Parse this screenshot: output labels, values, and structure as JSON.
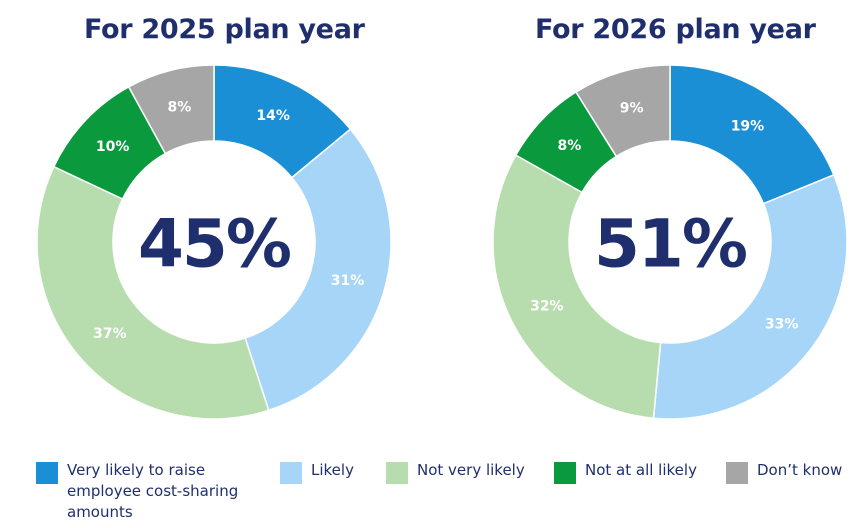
{
  "legend": [
    {
      "label": "Very likely to raise employee cost-sharing amounts",
      "color": "#1b8fd6"
    },
    {
      "label": "Likely",
      "color": "#a6d5f7"
    },
    {
      "label": "Not very likely",
      "color": "#b7dcae"
    },
    {
      "label": "Not at all likely",
      "color": "#0a9a3d"
    },
    {
      "label": "Don’t know",
      "color": "#a6a6a6"
    }
  ],
  "chart_data": [
    {
      "type": "pie",
      "title": "For 2025 plan year",
      "center_label": "45%",
      "categories": [
        "Very likely to raise employee cost-sharing amounts",
        "Likely",
        "Not very likely",
        "Not at all likely",
        "Don’t know"
      ],
      "values": [
        14,
        31,
        37,
        10,
        8
      ],
      "data_labels": [
        "14%",
        "31%",
        "37%",
        "10%",
        "8%"
      ],
      "colors": [
        "#1b8fd6",
        "#a6d5f7",
        "#b7dcae",
        "#0a9a3d",
        "#a6a6a6"
      ]
    },
    {
      "type": "pie",
      "title": "For 2026 plan year",
      "center_label": "51%",
      "categories": [
        "Very likely to raise employee cost-sharing amounts",
        "Likely",
        "Not very likely",
        "Not at all likely",
        "Don’t know"
      ],
      "values": [
        19,
        33,
        32,
        8,
        9
      ],
      "data_labels": [
        "19%",
        "33%",
        "32%",
        "8%",
        "9%"
      ],
      "colors": [
        "#1b8fd6",
        "#a6d5f7",
        "#b7dcae",
        "#0a9a3d",
        "#a6a6a6"
      ]
    }
  ]
}
